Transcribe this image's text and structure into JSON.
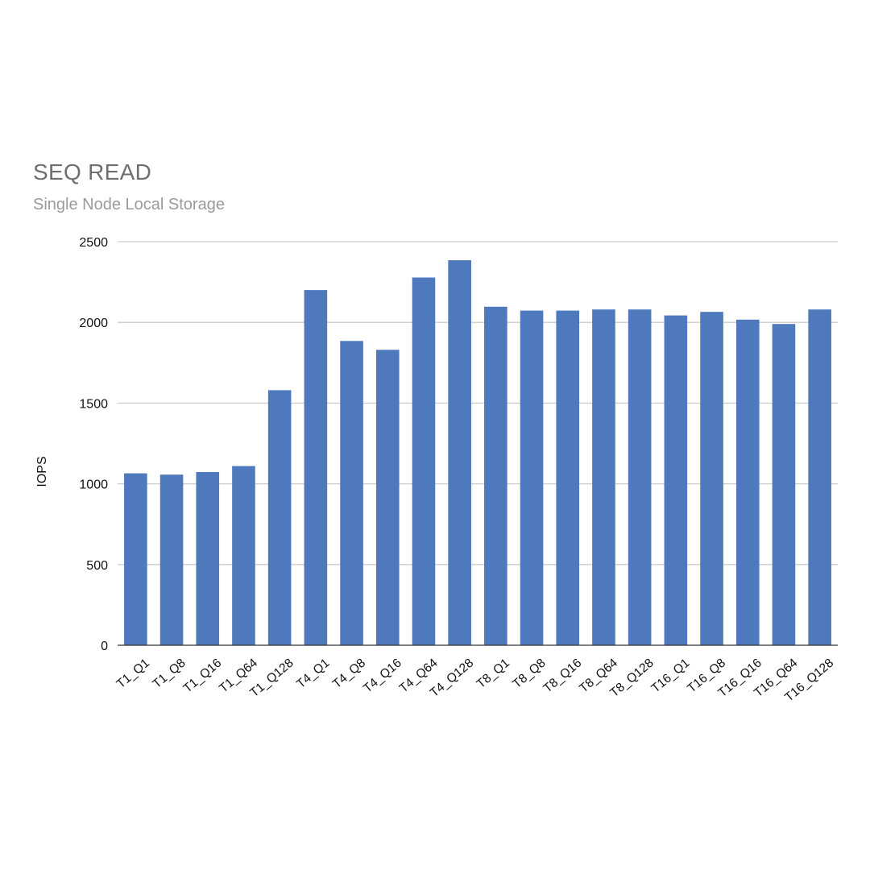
{
  "chart_data": {
    "type": "bar",
    "title": "SEQ READ",
    "subtitle": "Single Node Local Storage",
    "ylabel": "IOPS",
    "xlabel": "",
    "ylim": [
      0,
      2500
    ],
    "yticks": [
      "0",
      "500",
      "1000",
      "1500",
      "2000",
      "2500"
    ],
    "grid": true,
    "categories": [
      "T1_Q1",
      "T1_Q8",
      "T1_Q16",
      "T1_Q64",
      "T1_Q128",
      "T4_Q1",
      "T4_Q8",
      "T4_Q16",
      "T4_Q64",
      "T4_Q128",
      "T8_Q1",
      "T8_Q8",
      "T8_Q16",
      "T8_Q64",
      "T8_Q128",
      "T16_Q1",
      "T16_Q8",
      "T16_Q16",
      "T16_Q64",
      "T16_Q128"
    ],
    "values": [
      1065,
      1057,
      1073,
      1110,
      1580,
      2200,
      1885,
      1830,
      2278,
      2385,
      2097,
      2073,
      2073,
      2080,
      2080,
      2043,
      2065,
      2017,
      1990,
      2080
    ],
    "colors": {
      "bar": "#4f79bd",
      "grid": "#cccccc",
      "axis": "#333333"
    }
  }
}
